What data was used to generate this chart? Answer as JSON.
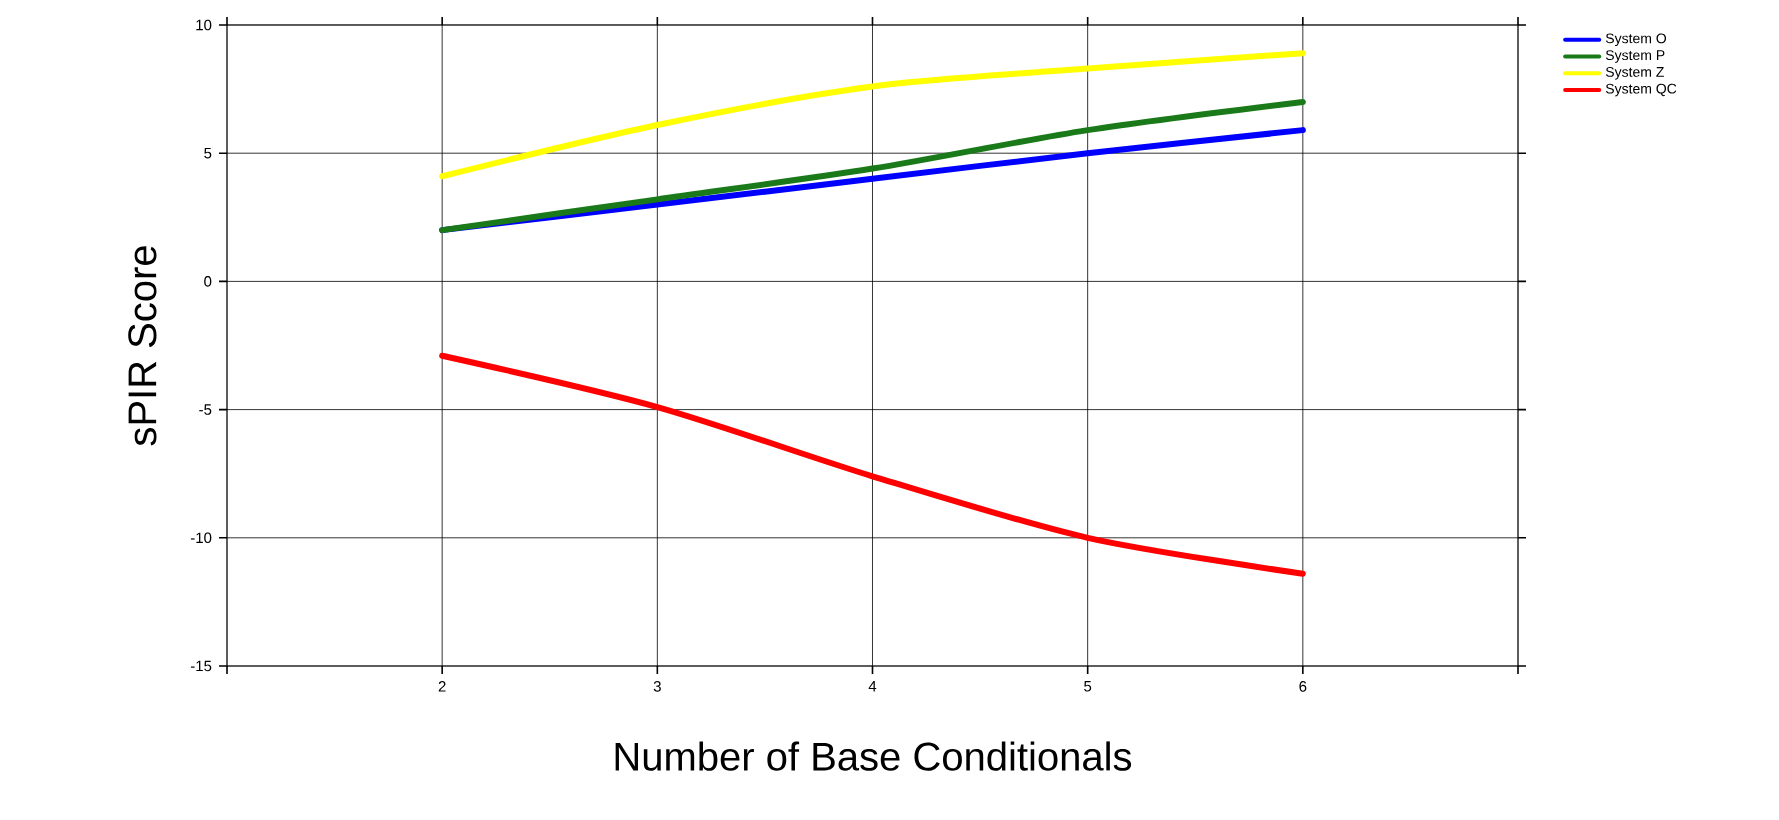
{
  "chart_data": {
    "type": "line",
    "xlabel": "Number of Base Conditionals",
    "ylabel": "sPIR Score",
    "x": [
      2,
      3,
      4,
      5,
      6
    ],
    "series": [
      {
        "name": "System O",
        "color": "#0000ff",
        "values": [
          2.0,
          3.0,
          4.0,
          5.0,
          5.9
        ]
      },
      {
        "name": "System P",
        "color": "#1a7a1a",
        "values": [
          2.0,
          3.2,
          4.4,
          5.9,
          7.0
        ]
      },
      {
        "name": "System Z",
        "color": "#ffff00",
        "values": [
          4.1,
          6.1,
          7.6,
          8.3,
          8.9
        ]
      },
      {
        "name": "System QC",
        "color": "#ff0000",
        "values": [
          -2.9,
          -4.9,
          -7.6,
          -10.0,
          -11.4
        ]
      }
    ],
    "xlim": [
      1,
      7
    ],
    "xticks": [
      {
        "value": 1,
        "label": null
      },
      2,
      3,
      4,
      5,
      6,
      {
        "value": 7,
        "label": null
      }
    ],
    "ylim": [
      -15,
      10
    ],
    "yticks": [
      -15,
      -10,
      -5,
      0,
      5,
      10
    ],
    "grid": true,
    "legend": "top right",
    "marker": "none",
    "line_style": "solid"
  }
}
